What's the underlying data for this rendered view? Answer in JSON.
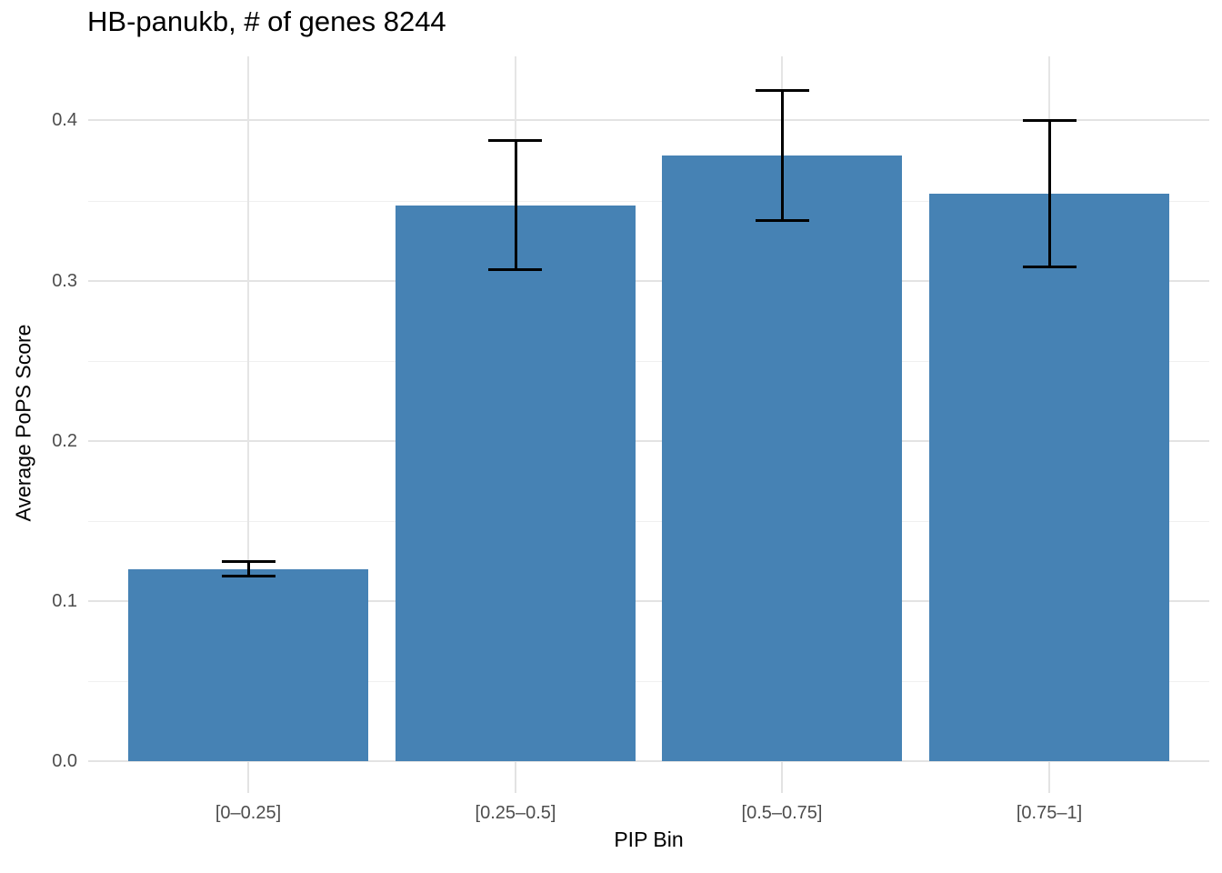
{
  "chart_data": {
    "type": "bar",
    "title": "HB-panukb, # of genes 8244",
    "xlabel": "PIP Bin",
    "ylabel": "Average PoPS Score",
    "categories": [
      "[0–0.25]",
      "[0.25–0.5]",
      "[0.5–0.75]",
      "[0.75–1]"
    ],
    "values": [
      0.12,
      0.347,
      0.378,
      0.354
    ],
    "error_low": [
      0.116,
      0.307,
      0.338,
      0.309
    ],
    "error_high": [
      0.125,
      0.388,
      0.419,
      0.4
    ],
    "ylim": [
      0,
      0.44
    ],
    "yticks": [
      0.0,
      0.1,
      0.2,
      0.3,
      0.4
    ],
    "ytick_labels": [
      "0.0",
      "0.1",
      "0.2",
      "0.3",
      "0.4"
    ],
    "minor_yticks": [
      0.05,
      0.15,
      0.25,
      0.35
    ],
    "grid": true,
    "legend": "none",
    "colors": {
      "bar_fill": "#4682B4",
      "error_bar": "#000000",
      "grid_major": "#E3E3E3",
      "grid_minor": "#F0F0F0",
      "tick_mark": "#E3E3E3",
      "tick_text": "#4D4D4D",
      "title_text": "#000000",
      "background": "#FFFFFF"
    }
  }
}
